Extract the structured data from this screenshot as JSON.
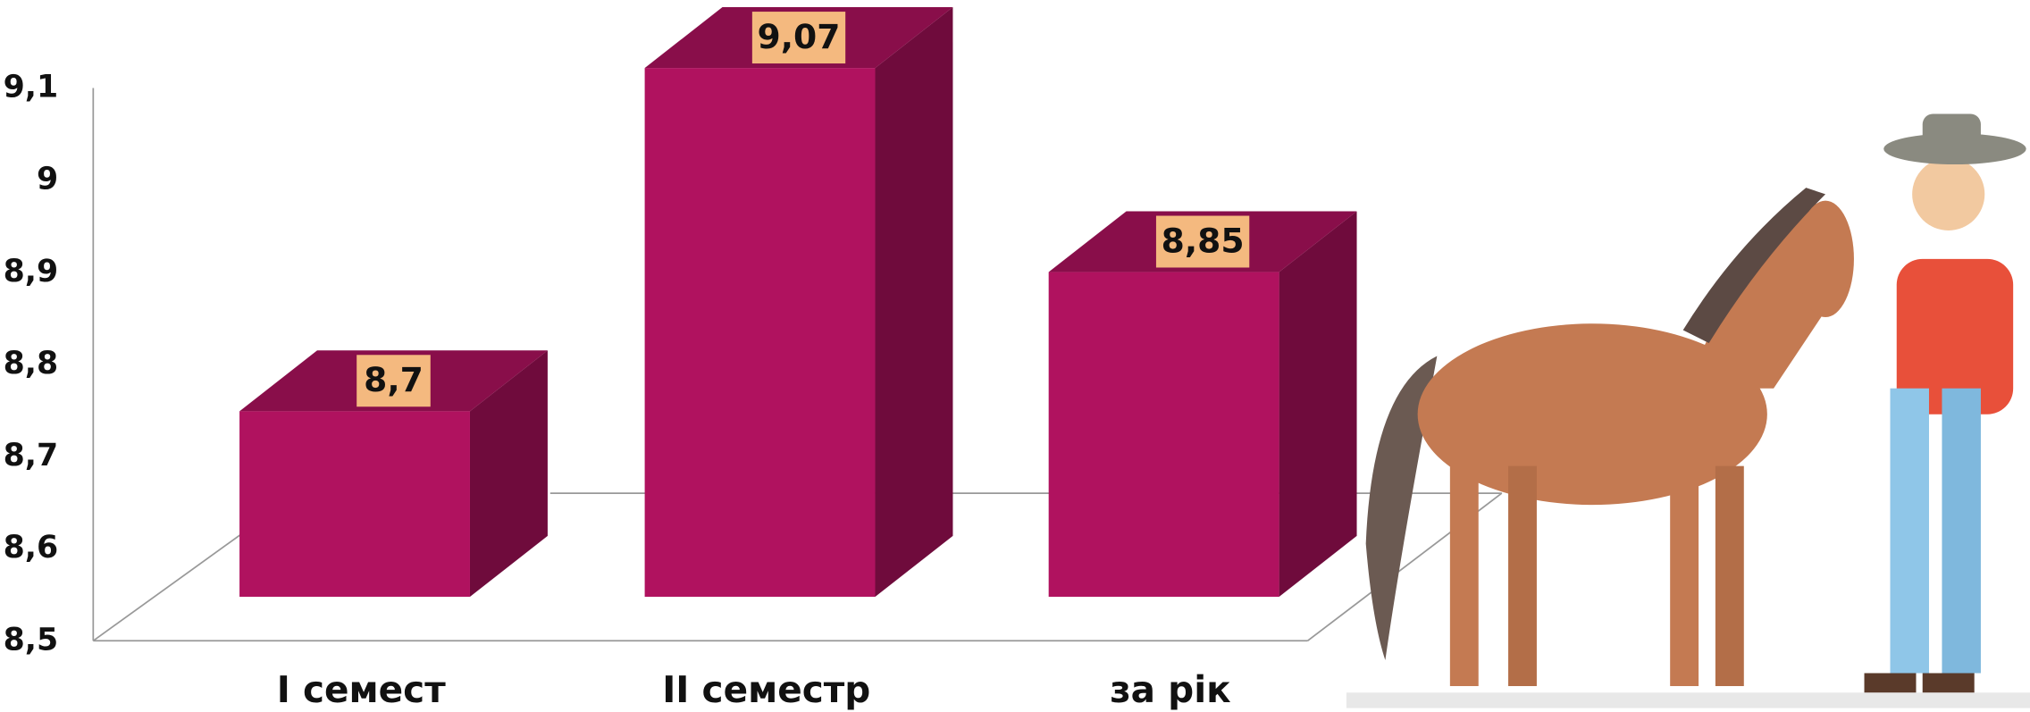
{
  "chart_data": {
    "type": "bar3d",
    "categories": [
      "I семест",
      "II семестр",
      "за рік"
    ],
    "values": [
      8.7,
      9.07,
      8.85
    ],
    "value_labels": [
      "8,7",
      "9,07",
      "8,85"
    ],
    "color": "#b0125f",
    "ylim": [
      8.5,
      9.1
    ],
    "yticks": [
      {
        "value": 8.5,
        "label": "8,5"
      },
      {
        "value": 8.6,
        "label": "8,6"
      },
      {
        "value": 8.7,
        "label": "8,7"
      },
      {
        "value": 8.8,
        "label": "8,8"
      },
      {
        "value": 8.9,
        "label": "8,9"
      },
      9,
      {
        "value": 9.1,
        "label": "9,1"
      }
    ]
  }
}
